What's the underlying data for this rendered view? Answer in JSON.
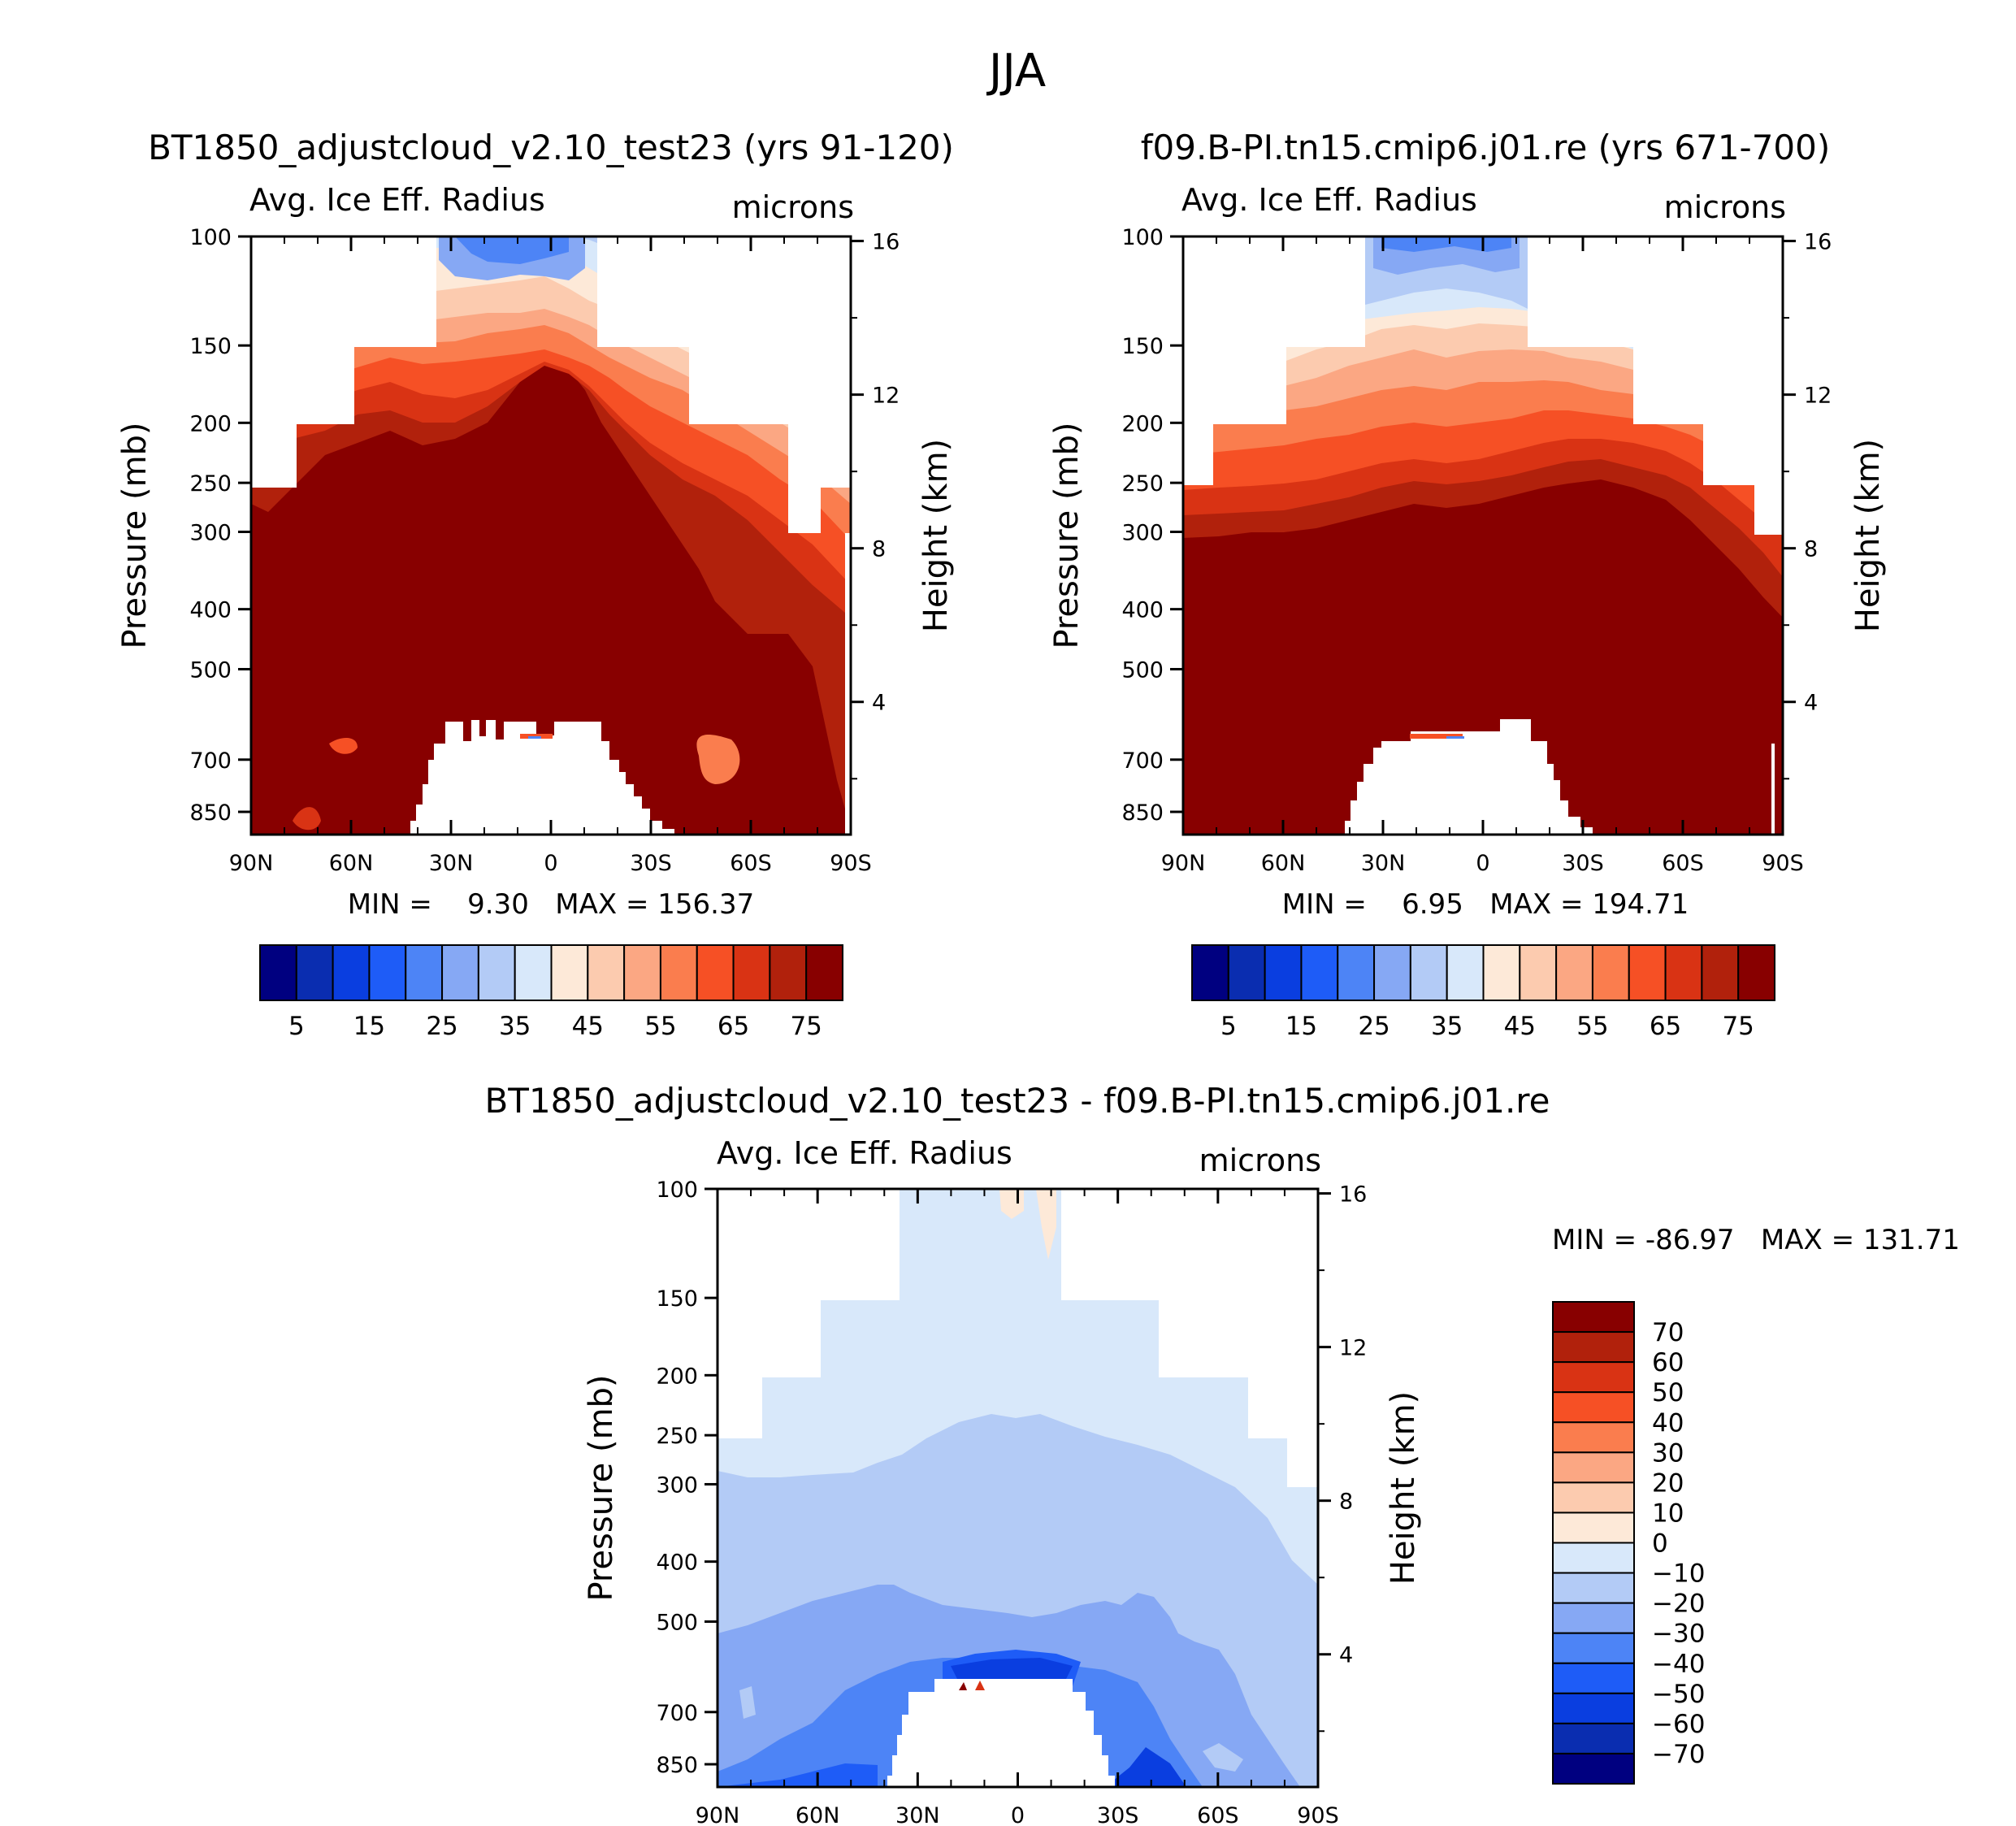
{
  "figure_title": "JJA",
  "chart_data": [
    {
      "type": "heatmap",
      "id": "p1",
      "title": "BT1850_adjustcloud_v2.10_test23 (yrs 91-120)",
      "variable": "Avg. Ice Eff. Radius",
      "units": "microns",
      "ylabel": "Pressure (mb)",
      "ylabel_right": "Height (km)",
      "xticks": [
        "90N",
        "60N",
        "30N",
        "0",
        "30S",
        "60S",
        "90S"
      ],
      "yticks": [
        "100",
        "150",
        "200",
        "250",
        "300",
        "400",
        "500",
        "700",
        "850"
      ],
      "yticks_right": [
        "16",
        "12",
        "8",
        "4"
      ],
      "stats": "MIN =    9.30   MAX = 156.37",
      "min": 9.3,
      "max": 156.37,
      "colorbar_levels": [
        0,
        5,
        10,
        15,
        20,
        25,
        30,
        35,
        40,
        45,
        50,
        55,
        60,
        65,
        70,
        75
      ],
      "colorbar_labels": [
        "5",
        "15",
        "25",
        "35",
        "45",
        "55",
        "65",
        "75"
      ],
      "colors": [
        "#000080",
        "#0a2db0",
        "#0a3ee0",
        "#1e5cf7",
        "#4d84f6",
        "#86a8f4",
        "#b3cbf6",
        "#d8e8fa",
        "#fde9d8",
        "#fccbaf",
        "#fba783",
        "#fa7d4e",
        "#f65025",
        "#d93314",
        "#b1210c",
        "#880000"
      ]
    },
    {
      "type": "heatmap",
      "id": "p2",
      "title": "f09.B-PI.tn15.cmip6.j01.re (yrs 671-700)",
      "variable": "Avg. Ice Eff. Radius",
      "units": "microns",
      "ylabel": "Pressure (mb)",
      "ylabel_right": "Height (km)",
      "xticks": [
        "90N",
        "60N",
        "30N",
        "0",
        "30S",
        "60S",
        "90S"
      ],
      "yticks": [
        "100",
        "150",
        "200",
        "250",
        "300",
        "400",
        "500",
        "700",
        "850"
      ],
      "yticks_right": [
        "16",
        "12",
        "8",
        "4"
      ],
      "stats": "MIN =    6.95   MAX = 194.71",
      "min": 6.95,
      "max": 194.71,
      "colorbar_levels": [
        0,
        5,
        10,
        15,
        20,
        25,
        30,
        35,
        40,
        45,
        50,
        55,
        60,
        65,
        70,
        75
      ],
      "colorbar_labels": [
        "5",
        "15",
        "25",
        "35",
        "45",
        "55",
        "65",
        "75"
      ],
      "colors": [
        "#000080",
        "#0a2db0",
        "#0a3ee0",
        "#1e5cf7",
        "#4d84f6",
        "#86a8f4",
        "#b3cbf6",
        "#d8e8fa",
        "#fde9d8",
        "#fccbaf",
        "#fba783",
        "#fa7d4e",
        "#f65025",
        "#d93314",
        "#b1210c",
        "#880000"
      ]
    },
    {
      "type": "heatmap",
      "id": "diff",
      "title": "BT1850_adjustcloud_v2.10_test23 - f09.B-PI.tn15.cmip6.j01.re",
      "variable": "Avg. Ice Eff. Radius",
      "units": "microns",
      "ylabel": "Pressure (mb)",
      "ylabel_right": "Height (km)",
      "xticks": [
        "90N",
        "60N",
        "30N",
        "0",
        "30S",
        "60S",
        "90S"
      ],
      "yticks": [
        "100",
        "150",
        "200",
        "250",
        "300",
        "400",
        "500",
        "700",
        "850"
      ],
      "yticks_right": [
        "16",
        "12",
        "8",
        "4"
      ],
      "stats": "MIN = -86.97   MAX = 131.71",
      "min": -86.97,
      "max": 131.71,
      "colorbar_labels": [
        "70",
        "60",
        "50",
        "40",
        "30",
        "20",
        "10",
        "0",
        "-10",
        "-20",
        "-30",
        "-40",
        "-50",
        "-60",
        "-70"
      ],
      "colors": [
        "#880000",
        "#b1210c",
        "#d93314",
        "#f65025",
        "#fa7d4e",
        "#fba783",
        "#fccbaf",
        "#fde9d8",
        "#d8e8fa",
        "#b3cbf6",
        "#86a8f4",
        "#4d84f6",
        "#1e5cf7",
        "#0a3ee0",
        "#0a2db0",
        "#000080"
      ]
    }
  ]
}
